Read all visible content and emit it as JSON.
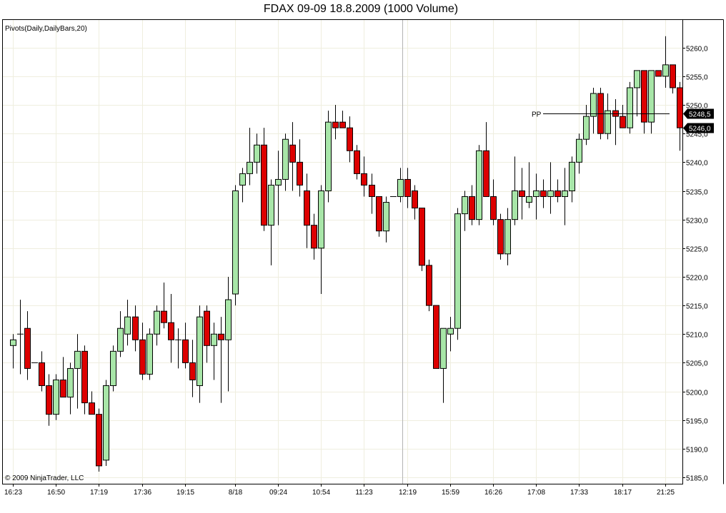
{
  "chart_data": {
    "type": "candlestick",
    "title": "FDAX 09-09  18.8.2009 (1000 Volume)",
    "indicator_label": "Pivots(Daily,DailyBars,20)",
    "copyright": "© 2009 NinjaTrader, LLC",
    "ylim": [
      5183,
      5264
    ],
    "y_ticks": [
      5185,
      5190,
      5195,
      5200,
      5205,
      5210,
      5215,
      5220,
      5225,
      5230,
      5235,
      5240,
      5245,
      5250,
      5255,
      5260
    ],
    "y_tick_labels": [
      "5185,0",
      "5190,0",
      "5195,0",
      "5200,0",
      "5205,0",
      "5210,0",
      "5215,0",
      "5220,0",
      "5225,0",
      "5230,0",
      "5235,0",
      "5240,0",
      "5245,0",
      "5250,0",
      "5255,0",
      "5260,0"
    ],
    "x_tick_labels": [
      {
        "bar": 0,
        "label": "16:23"
      },
      {
        "bar": 6,
        "label": "16:50"
      },
      {
        "bar": 12,
        "label": "17:19"
      },
      {
        "bar": 18,
        "label": "17:36"
      },
      {
        "bar": 24,
        "label": "19:15"
      },
      {
        "bar": 31,
        "label": "8/18"
      },
      {
        "bar": 37,
        "label": "09:24"
      },
      {
        "bar": 43,
        "label": "10:54"
      },
      {
        "bar": 49,
        "label": "11:23"
      },
      {
        "bar": 55,
        "label": "12:19"
      },
      {
        "bar": 61,
        "label": "15:59"
      },
      {
        "bar": 67,
        "label": "16:26"
      },
      {
        "bar": 73,
        "label": "17:08"
      },
      {
        "bar": 79,
        "label": "17:33"
      },
      {
        "bar": 85,
        "label": "18:17"
      },
      {
        "bar": 91,
        "label": "21:25"
      }
    ],
    "session_break_bar": 54.3,
    "pivot": {
      "label": "PP",
      "value": 5248.5,
      "value_label": "5248,5",
      "start_bar": 74
    },
    "last_price": {
      "value": 5246.0,
      "value_label": "5246,0"
    },
    "colors": {
      "up": "#a8e6a8",
      "down": "#dd0000",
      "grid": "#efeedf",
      "pivot": "#000000",
      "session_line": "#b4b4b4"
    },
    "candles": [
      [
        5208,
        5210,
        5204,
        5209
      ],
      [
        5210,
        5216,
        5203,
        5210
      ],
      [
        5211,
        5214,
        5202,
        5204
      ],
      [
        5205,
        5205,
        5205,
        5205
      ],
      [
        5205,
        5207,
        5200,
        5201
      ],
      [
        5201,
        5203,
        5194,
        5196
      ],
      [
        5196,
        5203,
        5195,
        5202
      ],
      [
        5202,
        5206,
        5199,
        5199
      ],
      [
        5199,
        5205,
        5196,
        5204
      ],
      [
        5204,
        5210,
        5197,
        5207
      ],
      [
        5207,
        5208,
        5196,
        5198
      ],
      [
        5198,
        5200,
        5196,
        5196
      ],
      [
        5196,
        5197,
        5186,
        5187
      ],
      [
        5188,
        5202,
        5187,
        5201
      ],
      [
        5201,
        5208,
        5200,
        5207
      ],
      [
        5207,
        5214,
        5206,
        5211
      ],
      [
        5210,
        5216,
        5208,
        5213
      ],
      [
        5213,
        5215,
        5207,
        5209
      ],
      [
        5209,
        5212,
        5202,
        5203
      ],
      [
        5203,
        5211,
        5202,
        5210
      ],
      [
        5210,
        5215,
        5208,
        5214
      ],
      [
        5214,
        5219,
        5211,
        5212
      ],
      [
        5212,
        5217,
        5205,
        5209
      ],
      [
        5209,
        5211,
        5204,
        5209
      ],
      [
        5209,
        5212,
        5204,
        5205
      ],
      [
        5205,
        5209,
        5199,
        5202
      ],
      [
        5201,
        5215,
        5198,
        5213
      ],
      [
        5214,
        5215,
        5205,
        5208
      ],
      [
        5208,
        5212,
        5202,
        5210
      ],
      [
        5210,
        5213,
        5198,
        5209
      ],
      [
        5209,
        5220,
        5200,
        5216
      ],
      [
        5217,
        5236,
        5215,
        5235
      ],
      [
        5236,
        5239,
        5233,
        5238
      ],
      [
        5238,
        5246,
        5236,
        5240
      ],
      [
        5240,
        5245,
        5238,
        5243
      ],
      [
        5243,
        5246,
        5228,
        5229
      ],
      [
        5229,
        5237,
        5222,
        5236
      ],
      [
        5236,
        5242,
        5229,
        5237
      ],
      [
        5237,
        5245,
        5235,
        5244
      ],
      [
        5243,
        5247,
        5235,
        5240
      ],
      [
        5240,
        5244,
        5234,
        5236
      ],
      [
        5235,
        5238,
        5225,
        5229
      ],
      [
        5229,
        5231,
        5223,
        5225
      ],
      [
        5225,
        5236,
        5217,
        5235
      ],
      [
        5235,
        5249,
        5233,
        5247
      ],
      [
        5247,
        5250,
        5244,
        5246
      ],
      [
        5247,
        5249,
        5246,
        5246
      ],
      [
        5246,
        5248,
        5240,
        5242
      ],
      [
        5242,
        5243,
        5237,
        5238
      ],
      [
        5238,
        5241,
        5234,
        5236
      ],
      [
        5236,
        5238,
        5231,
        5234
      ],
      [
        5234,
        5234,
        5227,
        5228
      ],
      [
        5228,
        5234,
        5226,
        5233
      ],
      [
        5234,
        5234,
        5234,
        5234
      ],
      [
        5234,
        5239,
        5233,
        5237
      ],
      [
        5237,
        5239,
        5232,
        5234
      ],
      [
        5235,
        5236,
        5230,
        5232
      ],
      [
        5232,
        5232,
        5221,
        5222
      ],
      [
        5222,
        5223,
        5214,
        5215
      ],
      [
        5215,
        5215,
        5204,
        5204
      ],
      [
        5204,
        5211,
        5198,
        5211
      ],
      [
        5210,
        5213,
        5207,
        5211
      ],
      [
        5211,
        5232,
        5209,
        5231
      ],
      [
        5231,
        5235,
        5228,
        5234
      ],
      [
        5234,
        5236,
        5229,
        5230
      ],
      [
        5230,
        5243,
        5229,
        5242
      ],
      [
        5242,
        5247,
        5234,
        5234
      ],
      [
        5234,
        5237,
        5229,
        5230
      ],
      [
        5230,
        5231,
        5223,
        5224
      ],
      [
        5224,
        5232,
        5222,
        5230
      ],
      [
        5230,
        5241,
        5229,
        5235
      ],
      [
        5235,
        5239,
        5230,
        5234
      ],
      [
        5233,
        5240,
        5232,
        5234
      ],
      [
        5234,
        5238,
        5230,
        5235
      ],
      [
        5235,
        5237,
        5232,
        5234
      ],
      [
        5234,
        5240,
        5231,
        5235
      ],
      [
        5235,
        5237,
        5233,
        5234
      ],
      [
        5234,
        5239,
        5229,
        5235
      ],
      [
        5235,
        5241,
        5233,
        5240
      ],
      [
        5240,
        5245,
        5238,
        5244
      ],
      [
        5244,
        5250,
        5243,
        5248
      ],
      [
        5248,
        5253,
        5245,
        5252
      ],
      [
        5252,
        5253,
        5244,
        5245
      ],
      [
        5245,
        5252,
        5244,
        5249
      ],
      [
        5249,
        5251,
        5243,
        5248
      ],
      [
        5248,
        5250,
        5246,
        5246
      ],
      [
        5246,
        5254,
        5245,
        5253
      ],
      [
        5253,
        5256,
        5248,
        5256
      ],
      [
        5256,
        5256,
        5245,
        5247
      ],
      [
        5247,
        5256,
        5245,
        5256
      ],
      [
        5256,
        5256,
        5255,
        5255
      ],
      [
        5255,
        5262,
        5253,
        5257
      ],
      [
        5257,
        5257,
        5252,
        5253
      ],
      [
        5253,
        5254,
        5242,
        5246
      ]
    ]
  }
}
